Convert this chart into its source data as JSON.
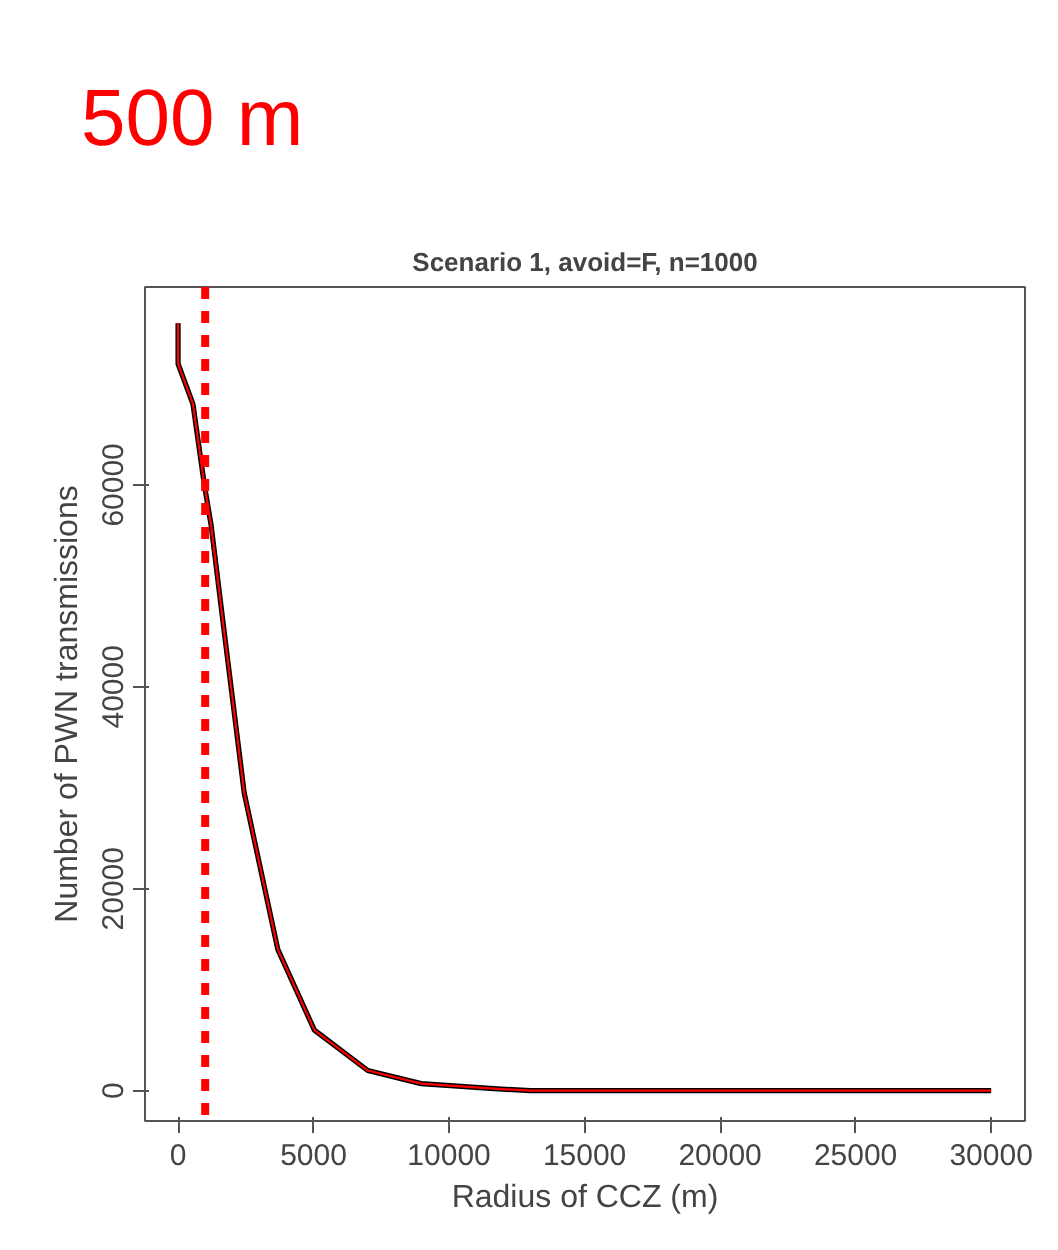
{
  "chart_data": {
    "type": "line",
    "title": "Scenario 1, avoid=F, n=1000",
    "xlabel": "Radius of CCZ (m)",
    "ylabel": "Number of PWN transmissions",
    "x": [
      0,
      0,
      550,
      970,
      1220,
      1700,
      2440,
      3680,
      5030,
      7000,
      8970,
      11650,
      13000,
      20000,
      30000
    ],
    "series": [
      {
        "color": "#000000",
        "values": [
          76000,
          72000,
          68000,
          60000,
          56000,
          45500,
          29500,
          14000,
          6000,
          2000,
          700,
          200,
          0,
          0,
          0
        ]
      },
      {
        "color": "#ff0000",
        "values": [
          76000,
          72000,
          68000,
          60000,
          56000,
          45500,
          29500,
          14000,
          6000,
          2000,
          700,
          200,
          0,
          0,
          0
        ]
      }
    ],
    "xlim": [
      -1220,
      31250
    ],
    "ylim": [
      -3000,
      79600
    ],
    "xticks": [
      0,
      5000,
      10000,
      15000,
      20000,
      25000,
      30000
    ],
    "yticks": [
      0,
      20000,
      40000,
      60000
    ],
    "ref_lines": [
      {
        "axis": "x",
        "value": 1000,
        "label": "500 m",
        "color": "#ff0000",
        "line_style": "dashed"
      }
    ],
    "grid": false
  }
}
